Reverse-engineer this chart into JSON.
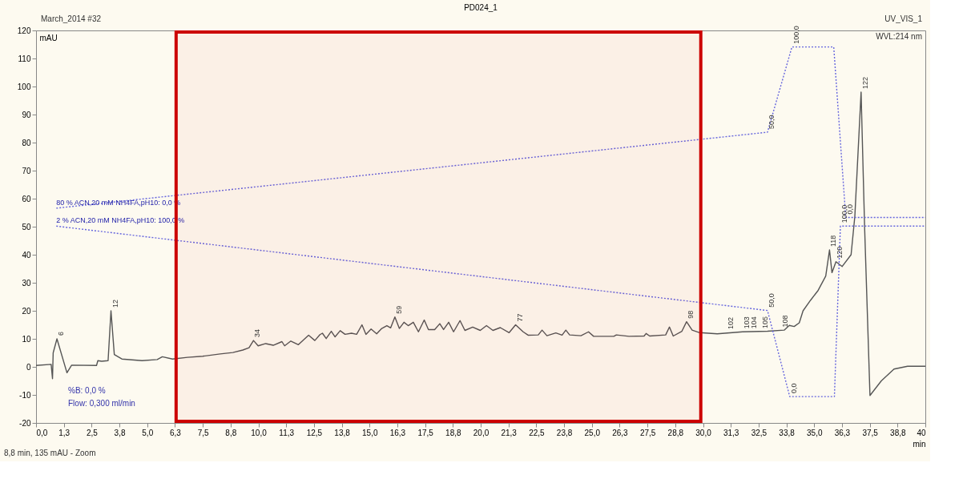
{
  "chart_data": {
    "type": "line",
    "title": "PD024_1",
    "xlabel": "min",
    "ylabel": "mAU",
    "xlim": [
      0,
      40
    ],
    "ylim": [
      -20,
      120
    ],
    "xticks": [
      {
        "value": 0,
        "label": "0,0"
      },
      {
        "value": 1.25,
        "label": "1,3"
      },
      {
        "value": 2.5,
        "label": "2,5"
      },
      {
        "value": 3.75,
        "label": "3,8"
      },
      {
        "value": 5,
        "label": "5,0"
      },
      {
        "value": 6.25,
        "label": "6,3"
      },
      {
        "value": 7.5,
        "label": "7,5"
      },
      {
        "value": 8.75,
        "label": "8,8"
      },
      {
        "value": 10,
        "label": "10,0"
      },
      {
        "value": 11.25,
        "label": "11,3"
      },
      {
        "value": 12.5,
        "label": "12,5"
      },
      {
        "value": 13.75,
        "label": "13,8"
      },
      {
        "value": 15,
        "label": "15,0"
      },
      {
        "value": 16.25,
        "label": "16,3"
      },
      {
        "value": 17.5,
        "label": "17,5"
      },
      {
        "value": 18.75,
        "label": "18,8"
      },
      {
        "value": 20,
        "label": "20,0"
      },
      {
        "value": 21.25,
        "label": "21,3"
      },
      {
        "value": 22.5,
        "label": "22,5"
      },
      {
        "value": 23.75,
        "label": "23,8"
      },
      {
        "value": 25,
        "label": "25,0"
      },
      {
        "value": 26.25,
        "label": "26,3"
      },
      {
        "value": 27.5,
        "label": "27,5"
      },
      {
        "value": 28.75,
        "label": "28,8"
      },
      {
        "value": 30,
        "label": "30,0"
      },
      {
        "value": 31.25,
        "label": "31,3"
      },
      {
        "value": 32.5,
        "label": "32,5"
      },
      {
        "value": 33.75,
        "label": "33,8"
      },
      {
        "value": 35,
        "label": "35,0"
      },
      {
        "value": 36.25,
        "label": "36,3"
      },
      {
        "value": 37.5,
        "label": "37,5"
      },
      {
        "value": 38.75,
        "label": "38,8"
      },
      {
        "value": 40,
        "label": "40"
      }
    ],
    "yticks": [
      -20,
      -10,
      0,
      10,
      20,
      30,
      40,
      50,
      60,
      70,
      80,
      90,
      100,
      110,
      120
    ],
    "grid": false,
    "series": [
      {
        "color": "#555555",
        "line_style": "solid",
        "x": [
          0,
          0.68,
          0.74,
          0.77,
          0.94,
          1.39,
          1.6,
          2.72,
          2.78,
          2.95,
          3.24,
          3.37,
          3.52,
          3.86,
          4.77,
          5.45,
          5.68,
          6.14,
          6.81,
          7.5,
          8.28,
          8.85,
          9.3,
          9.58,
          9.78,
          9.99,
          10.33,
          10.67,
          11.06,
          11.18,
          11.46,
          11.8,
          12.26,
          12.54,
          12.77,
          12.88,
          13.05,
          13.28,
          13.45,
          13.68,
          13.9,
          14.19,
          14.42,
          14.66,
          14.84,
          15.07,
          15.32,
          15.55,
          15.78,
          15.95,
          16.14,
          16.34,
          16.55,
          16.74,
          16.97,
          17.2,
          17.46,
          17.65,
          17.93,
          18.16,
          18.33,
          18.56,
          18.78,
          19.07,
          19.29,
          19.64,
          19.98,
          20.26,
          20.55,
          20.88,
          21.28,
          21.57,
          21.91,
          22.13,
          22.59,
          22.76,
          22.98,
          23.38,
          23.66,
          23.83,
          24.0,
          24.51,
          24.85,
          25.08,
          25.99,
          26.1,
          26.67,
          27.35,
          27.44,
          27.6,
          28.32,
          28.49,
          28.66,
          29.05,
          29.26,
          29.51,
          29.85,
          30.64,
          31.78,
          32.9,
          33.65,
          33.88,
          34.1,
          34.33,
          34.5,
          34.84,
          35.18,
          35.52,
          35.69,
          35.8,
          35.98,
          36.26,
          36.66,
          36.83,
          37.11,
          37.27,
          37.51,
          38.02,
          38.59,
          39.2,
          40
        ],
        "values": [
          0.5,
          0.9,
          -4.2,
          5.0,
          10,
          -2.1,
          0.6,
          0.5,
          2.2,
          2.0,
          2.2,
          20,
          4.4,
          2.8,
          2.2,
          2.6,
          3.6,
          2.8,
          3.4,
          3.8,
          4.6,
          5.1,
          6.0,
          6.8,
          9.4,
          7.5,
          8.3,
          7.7,
          9.0,
          7.5,
          9.2,
          7.9,
          11.3,
          9.4,
          11.5,
          12.0,
          10.1,
          12.7,
          10.7,
          12.9,
          11.6,
          12.0,
          11.6,
          15.0,
          11.6,
          13.5,
          11.8,
          13.7,
          14.7,
          13.9,
          17.8,
          13.7,
          15.9,
          14.7,
          15.9,
          12.5,
          16.7,
          13.3,
          13.3,
          15.4,
          13.3,
          15.9,
          12.5,
          16.5,
          13.0,
          14.2,
          13.0,
          14.7,
          13.0,
          14.0,
          12.2,
          15.0,
          12.5,
          11.3,
          11.4,
          13.1,
          11.1,
          12.1,
          11.3,
          13.1,
          11.4,
          11.1,
          12.5,
          10.9,
          10.9,
          11.4,
          10.9,
          11.0,
          11.9,
          11.0,
          11.4,
          14.2,
          11.0,
          12.7,
          16.1,
          13.1,
          12.2,
          11.8,
          12.5,
          12.7,
          13.1,
          14.8,
          14.4,
          15.7,
          20.0,
          23.8,
          27.3,
          32.4,
          41.7,
          33.6,
          37.5,
          35.8,
          40,
          53.8,
          98,
          49.4,
          -10.2,
          -5.0,
          -0.8,
          0.2,
          0.2
        ]
      },
      {
        "name": "80 % ACN,20 mM NH4FA,pH10: 0,0 %",
        "color": "#6666dd",
        "line_style": "dotted",
        "x": [
          0.91,
          32.9,
          34.0,
          35.88,
          36.42,
          40
        ],
        "values": [
          56.6,
          83.7,
          114.1,
          114.1,
          53.3,
          53.3
        ]
      },
      {
        "name": "2 % ACN,20 mM NH4FA,pH10: 100,0 %",
        "color": "#6666dd",
        "line_style": "dotted",
        "x": [
          0.91,
          32.9,
          33.9,
          35.91,
          36.18,
          40
        ],
        "values": [
          50.2,
          20.1,
          -10.6,
          -10.6,
          50.2,
          50.2
        ]
      }
    ],
    "bands": [
      {
        "axis": "x",
        "from": 6.3,
        "to": 29.9,
        "color": "#cc0000"
      }
    ],
    "annotations": [
      "March_2014 #32",
      "UV_VIS_1",
      "WVL:214 nm",
      "%B: 0,0 %",
      "Flow: 0,300 ml/min",
      "8,8 min, 135 mAU - Zoom",
      {
        "text": "6",
        "x": 0.94,
        "y": 10
      },
      {
        "text": "12",
        "x": 3.37,
        "y": 20
      },
      {
        "text": "34",
        "x": 9.78,
        "y": 9.4
      },
      {
        "text": "59",
        "x": 16.14,
        "y": 17.8
      },
      {
        "text": "77",
        "x": 21.57,
        "y": 15.0
      },
      {
        "text": "98",
        "x": 29.26,
        "y": 16.1
      },
      {
        "text": "102",
        "x": 31.05,
        "y": 12.3
      },
      {
        "text": "103",
        "x": 31.8,
        "y": 12.5
      },
      {
        "text": "104",
        "x": 32.1,
        "y": 12.5
      },
      {
        "text": "105",
        "x": 32.6,
        "y": 12.6
      },
      {
        "text": "108",
        "x": 33.5,
        "y": 13.0
      },
      {
        "text": "118",
        "x": 35.69,
        "y": 41.7
      },
      {
        "text": "120",
        "x": 35.98,
        "y": 37.5
      },
      {
        "text": "122",
        "x": 37.11,
        "y": 98
      },
      {
        "text": "50,0",
        "x": 32.9,
        "y": 83.7
      },
      {
        "text": "100,0",
        "x": 34.0,
        "y": 114.1
      },
      {
        "text": "0,0",
        "x": 36.42,
        "y": 53.3
      },
      {
        "text": "50,0",
        "x": 32.9,
        "y": 20.1
      },
      {
        "text": "0,0",
        "x": 33.9,
        "y": -10.6
      },
      {
        "text": "100,0",
        "x": 36.18,
        "y": 50.2
      }
    ]
  }
}
